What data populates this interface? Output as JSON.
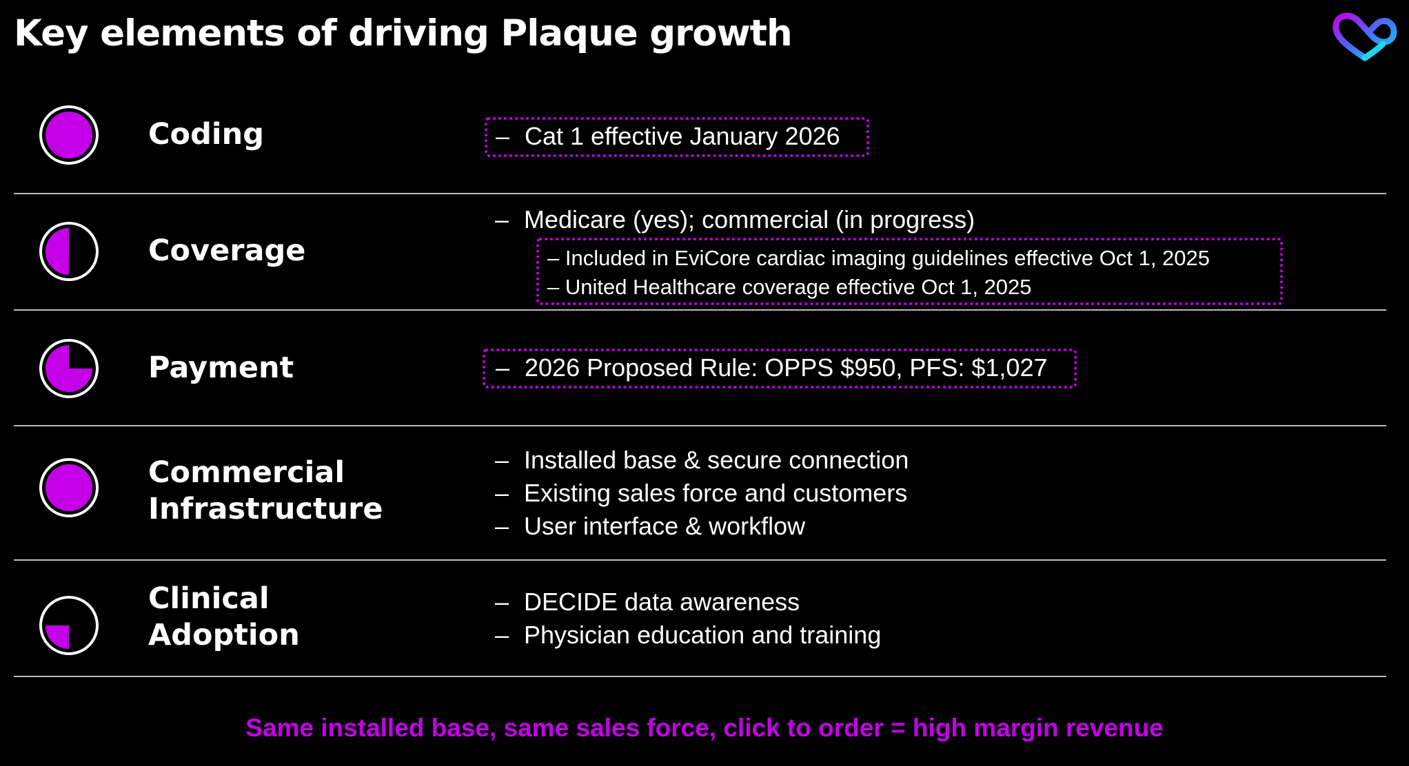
{
  "title": "Key elements of driving Plaque growth",
  "logo": {
    "icon": "infinity-heart-logo",
    "colors": [
      "#c400e8",
      "#3a7bff",
      "#22d3ee"
    ]
  },
  "accent_color": "#c400e8",
  "rows": [
    {
      "label": "Coding",
      "fill_fraction": 1.0,
      "bullets": [
        "Cat 1 effective January 2026"
      ],
      "highlighted": true
    },
    {
      "label": "Coverage",
      "fill_fraction": 0.5,
      "bullets": [
        "Medicare (yes); commercial (in progress)"
      ],
      "sub_bullets": [
        "Included in EviCore cardiac imaging guidelines effective Oct 1, 2025",
        "United Healthcare coverage effective Oct 1, 2025"
      ]
    },
    {
      "label": "Payment",
      "fill_fraction": 0.75,
      "bullets": [
        "2026 Proposed Rule: OPPS $950, PFS: $1,027"
      ],
      "highlighted": true
    },
    {
      "label_lines": [
        "Commercial",
        "Infrastructure"
      ],
      "fill_fraction": 1.0,
      "bullets": [
        "Installed base & secure connection",
        "Existing sales force and customers",
        "User interface & workflow"
      ]
    },
    {
      "label_lines": [
        "Clinical",
        "Adoption"
      ],
      "fill_fraction": 0.25,
      "bullets": [
        "DECIDE data awareness",
        "Physician education and training"
      ]
    }
  ],
  "dash": "–",
  "footer": "Same installed base, same sales force, click to order = high margin revenue"
}
